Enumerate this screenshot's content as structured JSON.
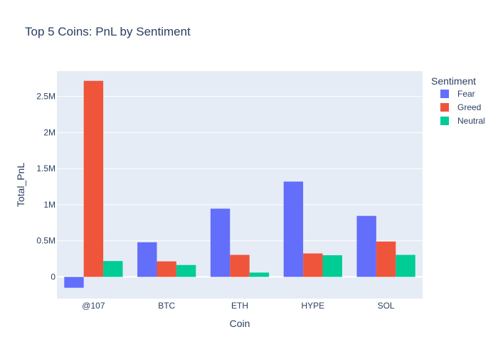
{
  "chart_data": {
    "type": "bar",
    "title": "Top 5 Coins: PnL by Sentiment",
    "xlabel": "Coin",
    "ylabel": "Total_PnL",
    "categories": [
      "@107",
      "BTC",
      "ETH",
      "HYPE",
      "SOL"
    ],
    "series": [
      {
        "name": "Fear",
        "color": "#636efa",
        "values": [
          -150000,
          480000,
          945000,
          1320000,
          845000
        ]
      },
      {
        "name": "Greed",
        "color": "#ef553b",
        "values": [
          2715000,
          215000,
          305000,
          325000,
          490000
        ]
      },
      {
        "name": "Neutral",
        "color": "#00cc96",
        "values": [
          220000,
          165000,
          60000,
          300000,
          305000
        ]
      }
    ],
    "ylim": [
      -300000,
      2850000
    ],
    "yticks": [
      {
        "value": 0,
        "label": "0"
      },
      {
        "value": 500000,
        "label": "0.5M"
      },
      {
        "value": 1000000,
        "label": "1M"
      },
      {
        "value": 1500000,
        "label": "1.5M"
      },
      {
        "value": 2000000,
        "label": "2M"
      },
      {
        "value": 2500000,
        "label": "2.5M"
      }
    ],
    "legend": {
      "title": "Sentiment",
      "placement": "top-right"
    },
    "grid": true,
    "plot_bg": "#e5ecf6"
  }
}
